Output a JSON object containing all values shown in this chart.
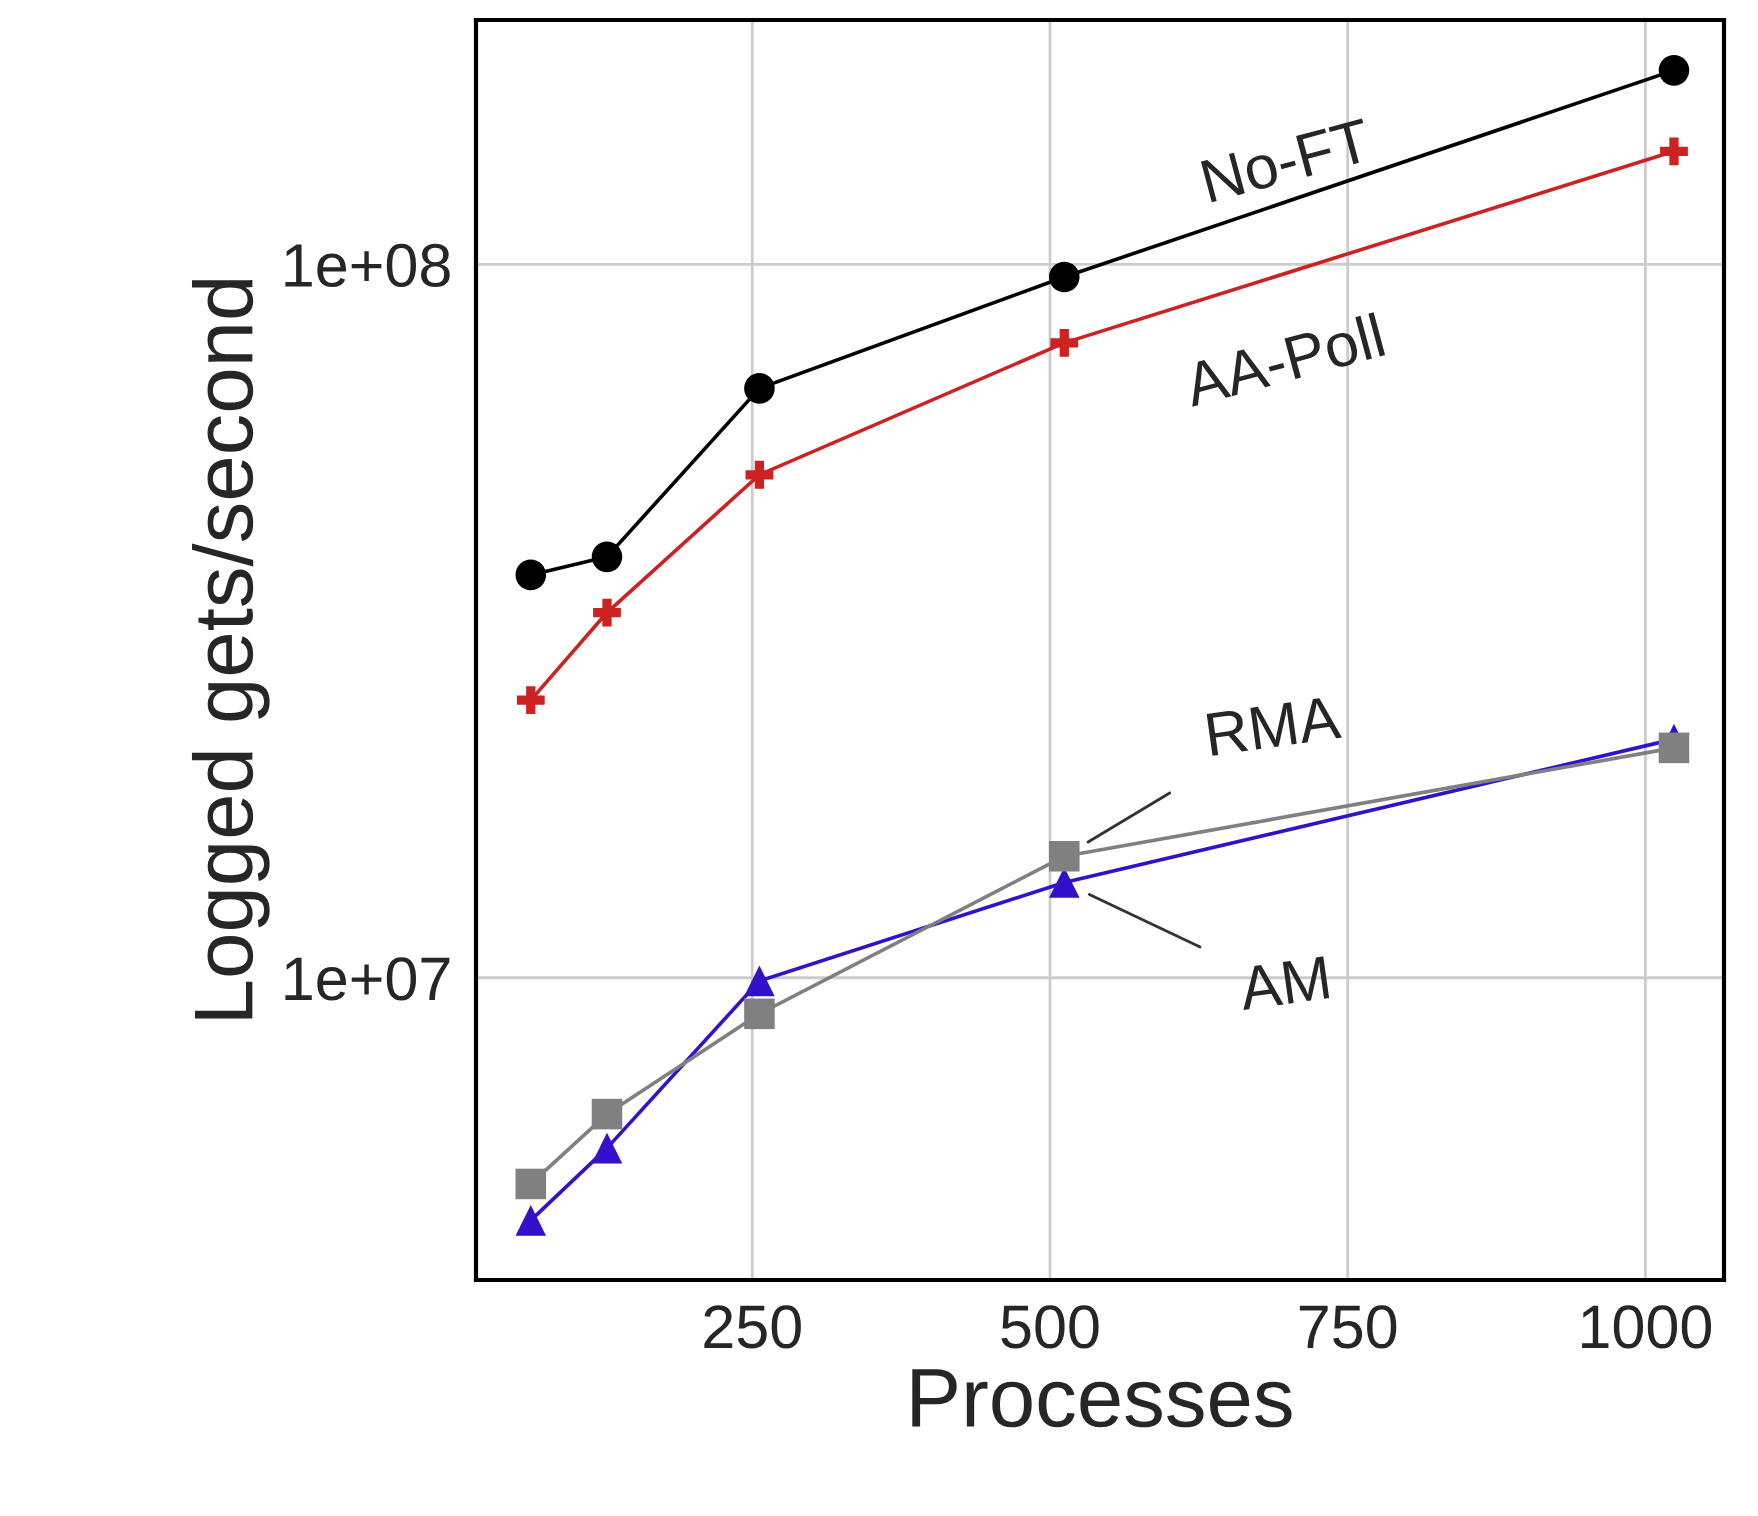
{
  "chart_data": {
    "type": "line",
    "xlabel": "Processes",
    "ylabel": "Logged gets/second",
    "log": "y",
    "x": [
      64,
      128,
      256,
      512,
      1024
    ],
    "series": [
      {
        "name": "No-FT",
        "color": "#000000",
        "marker": "circle",
        "values": [
          36700000,
          38900000,
          67000000,
          96000000,
          187000000
        ]
      },
      {
        "name": "AA-Poll",
        "color": "#cc2222",
        "marker": "cross",
        "values": [
          24500000,
          32500000,
          50700000,
          77600000,
          144000000
        ]
      },
      {
        "name": "RMA",
        "color": "#808080",
        "marker": "square",
        "values": [
          5140000,
          6440000,
          8900000,
          14800000,
          21000000
        ]
      },
      {
        "name": "AM",
        "color": "#3311cc",
        "marker": "triangle",
        "values": [
          4570000,
          5770000,
          9900000,
          13600000,
          21600000
        ]
      }
    ],
    "xlim": [
      18,
      1066
    ],
    "ylim": [
      3770000,
      220000000
    ],
    "xticks": [
      250,
      500,
      750,
      1000
    ],
    "yticks": [
      {
        "value": 10000000,
        "label": "1e+07"
      },
      {
        "value": 100000000,
        "label": "1e+08"
      }
    ],
    "grid": true,
    "line_style": "solid"
  }
}
